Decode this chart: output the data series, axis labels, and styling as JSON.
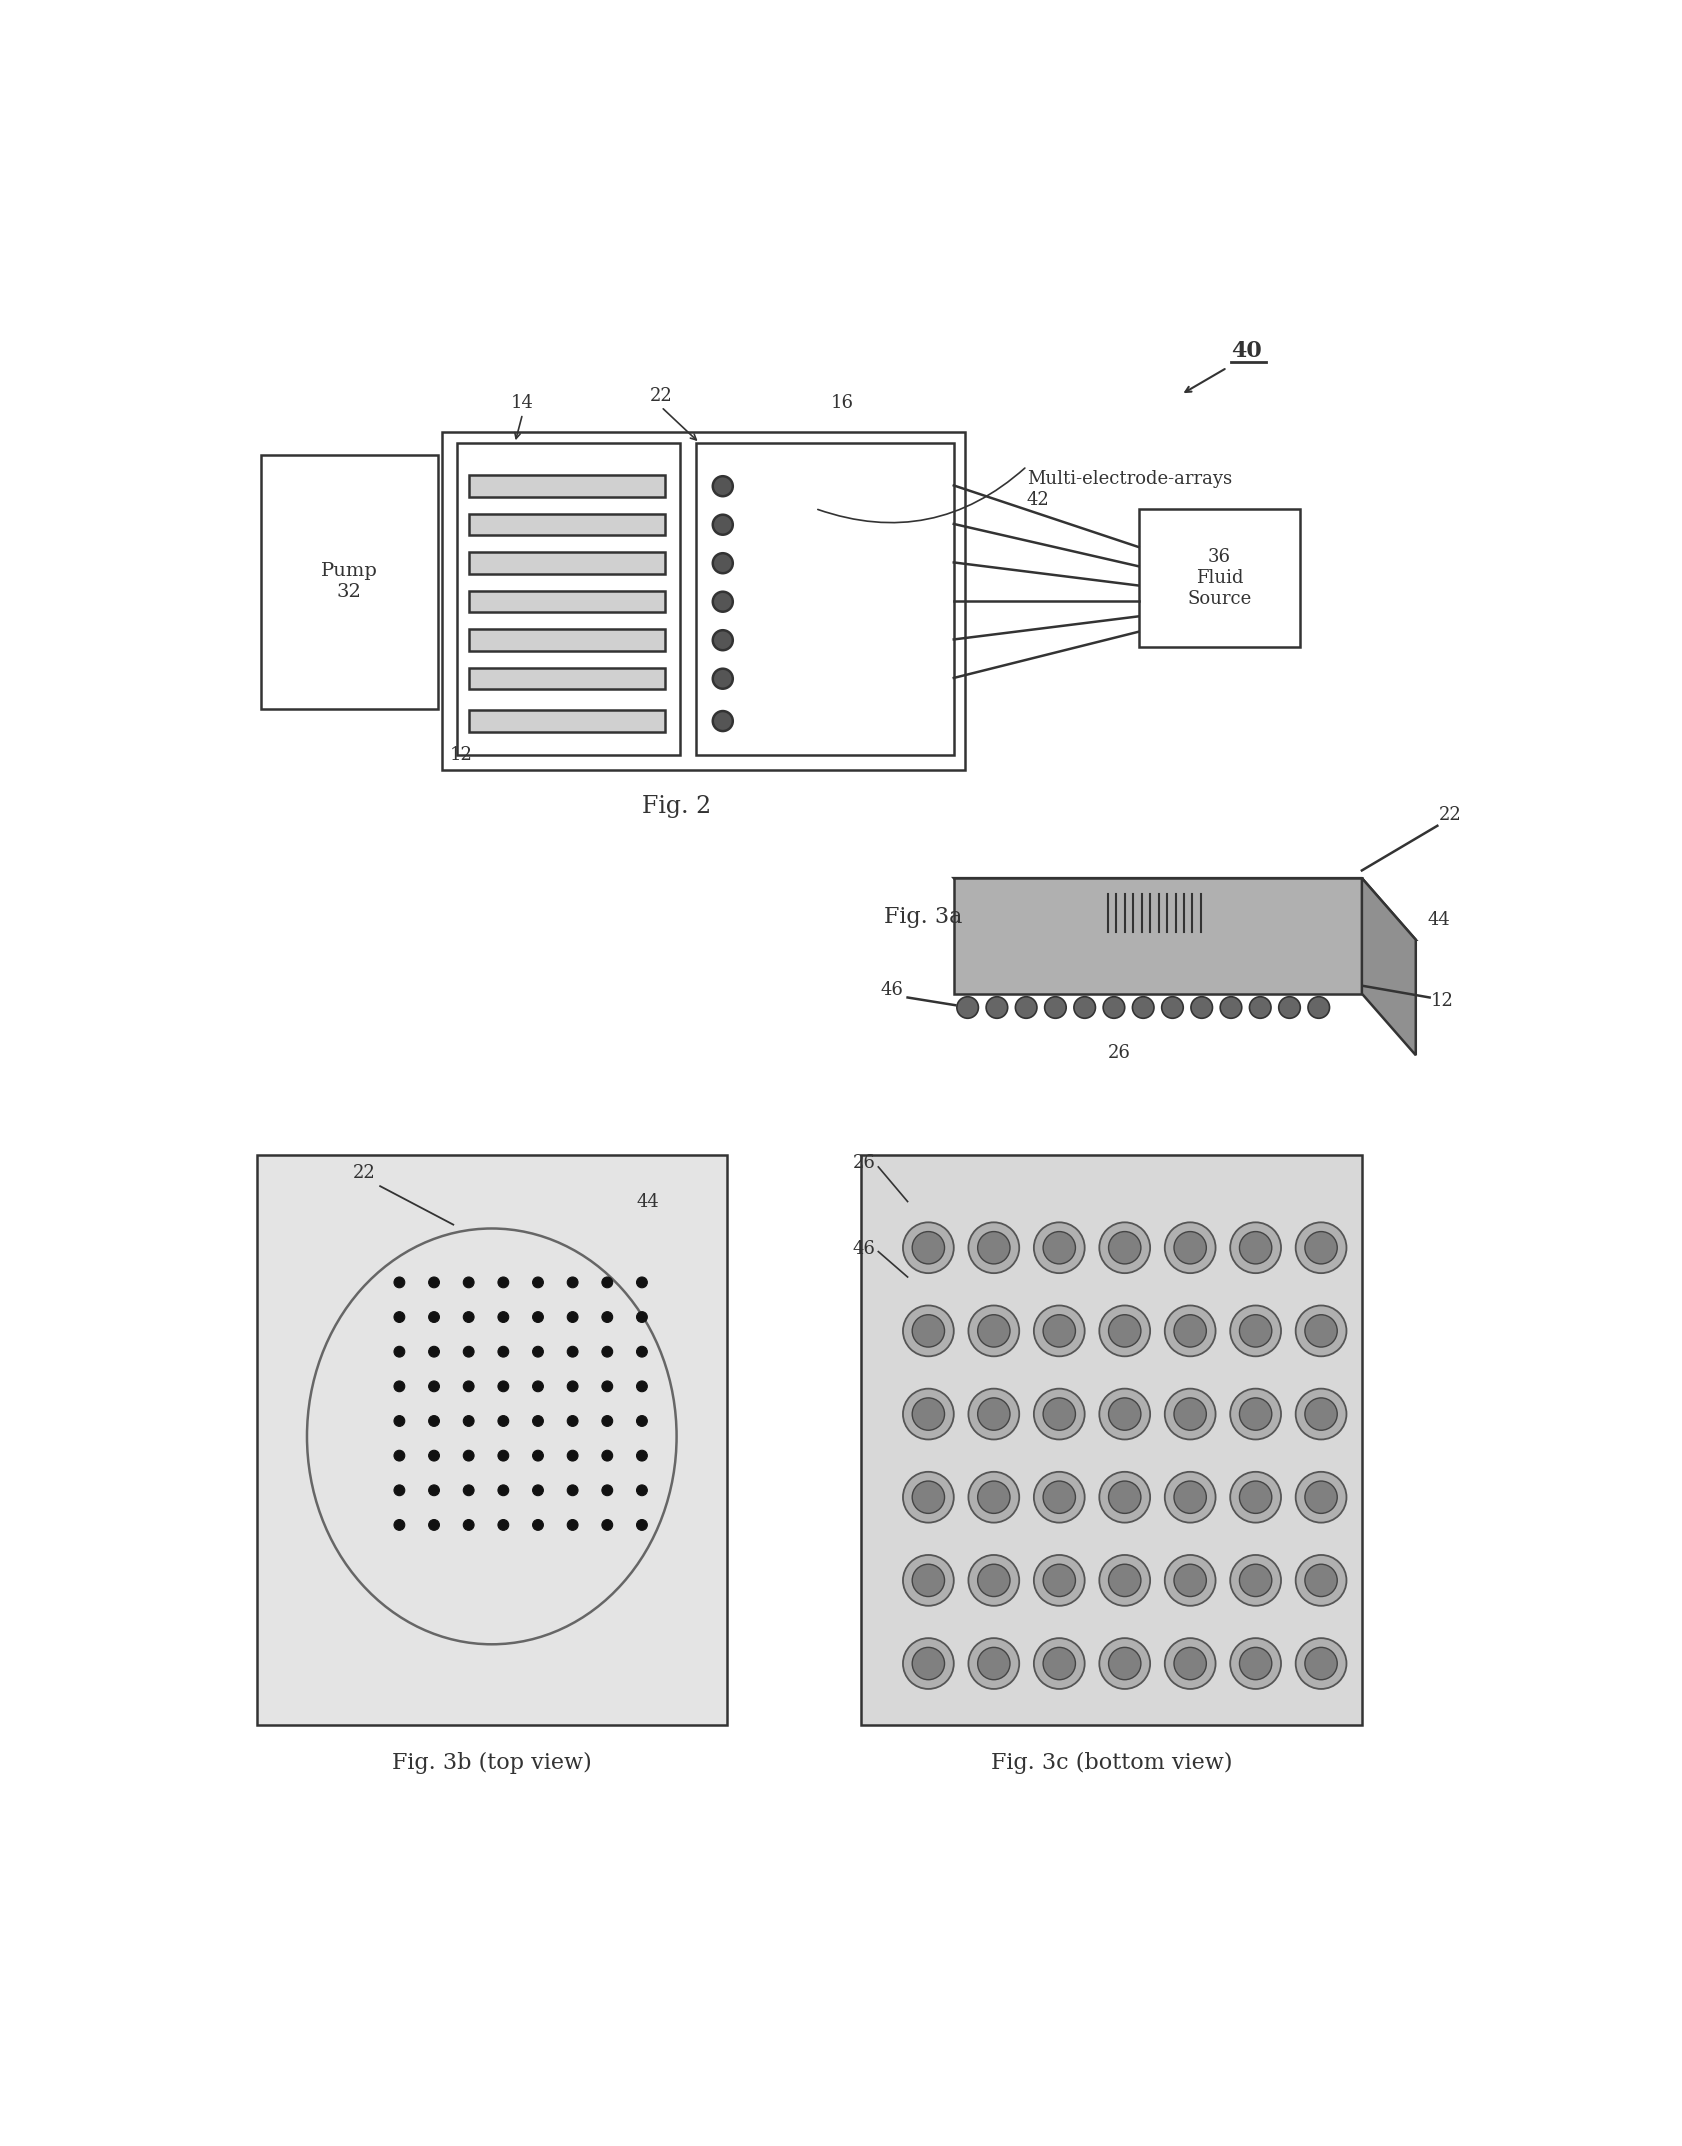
{
  "bg_color": "#ffffff",
  "line_color": "#333333",
  "fig2": {
    "title": "Fig. 2",
    "pump_label": "Pump\n32",
    "fluid_label": "36\nFluid\nSource",
    "mea_label": "Multi-electrode-arrays\n42",
    "label_14": "14",
    "label_22": "22",
    "label_16": "16",
    "label_12": "12",
    "label_40": "40"
  },
  "fig3a": {
    "title": "Fig. 3a",
    "label_22": "22",
    "label_44": "44",
    "label_12": "12",
    "label_26": "26",
    "label_46": "46"
  },
  "fig3b": {
    "title": "Fig. 3b (top view)",
    "label_22": "22",
    "label_44": "44",
    "dot_rows": 8,
    "dot_cols": 8
  },
  "fig3c": {
    "title": "Fig. 3c (bottom view)",
    "label_26": "26",
    "label_46": "46",
    "dot_rows": 6,
    "dot_cols": 7
  }
}
